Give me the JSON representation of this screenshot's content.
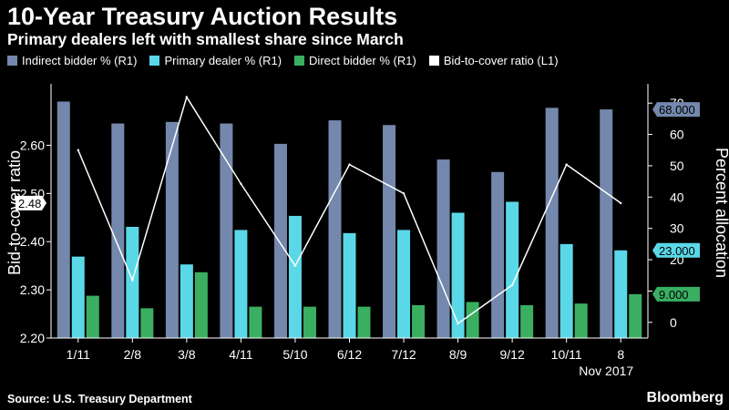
{
  "header": {
    "title": "10-Year Treasury Auction Results",
    "subtitle": "Primary dealers left with smallest share since March"
  },
  "footer": {
    "source": "Source: U.S. Treasury Department",
    "brand": "Bloomberg"
  },
  "colors": {
    "indirect": "#7388ac",
    "dealer": "#5ad8e8",
    "direct": "#3aaf62",
    "ratio": "#ffffff",
    "background": "#000000",
    "axis": "#ffffff"
  },
  "chart_data": {
    "type": "bar",
    "title": "10-Year Treasury Auction Results",
    "subtitle": "Primary dealers left with smallest share since March",
    "categories": [
      "1/11",
      "2/8",
      "3/8",
      "4/11",
      "5/10",
      "6/12",
      "7/12",
      "8/9",
      "9/12",
      "10/11",
      "8"
    ],
    "category_note": "Nov 2017",
    "series": [
      {
        "name": "Indirect bidder % (R1)",
        "axis": "right",
        "kind": "bar",
        "values": [
          70.5,
          63.5,
          64.0,
          63.5,
          57.0,
          64.5,
          63.0,
          52.0,
          48.0,
          68.5,
          68.0
        ]
      },
      {
        "name": "Primary dealer % (R1)",
        "axis": "right",
        "kind": "bar",
        "values": [
          21.0,
          30.5,
          18.5,
          29.5,
          34.0,
          28.5,
          29.5,
          35.0,
          38.5,
          25.0,
          23.0
        ]
      },
      {
        "name": "Direct bidder % (R1)",
        "axis": "right",
        "kind": "bar",
        "values": [
          8.5,
          4.5,
          16.0,
          5.0,
          5.0,
          5.0,
          5.5,
          6.5,
          5.5,
          6.0,
          9.0
        ]
      },
      {
        "name": "Bid-to-cover ratio (L1)",
        "axis": "left",
        "kind": "line",
        "values": [
          2.59,
          2.32,
          2.7,
          2.52,
          2.35,
          2.56,
          2.5,
          2.23,
          2.31,
          2.56,
          2.48
        ]
      }
    ],
    "left_axis": {
      "label": "Bid-to-cover ratio",
      "ticks": [
        2.2,
        2.3,
        2.4,
        2.5,
        2.6
      ],
      "tick_labels": [
        "2.20",
        "2.30",
        "2.40",
        "2.50",
        "2.60"
      ],
      "range": [
        2.2,
        2.72
      ]
    },
    "right_axis": {
      "label": "Percent allocation",
      "ticks": [
        0,
        10,
        20,
        30,
        40,
        50,
        60,
        70
      ],
      "tick_labels": [
        "0",
        "10",
        "20",
        "30",
        "40",
        "50",
        "60",
        "70"
      ],
      "range": [
        -5,
        75
      ]
    },
    "callouts": [
      {
        "series": "Bid-to-cover ratio (L1)",
        "axis": "left",
        "value": 2.48,
        "label": "2.48"
      },
      {
        "series": "Indirect bidder % (R1)",
        "axis": "right",
        "value": 68.0,
        "label": "68.000"
      },
      {
        "series": "Primary dealer % (R1)",
        "axis": "right",
        "value": 23.0,
        "label": "23.000"
      },
      {
        "series": "Direct bidder % (R1)",
        "axis": "right",
        "value": 9.0,
        "label": "9.000"
      }
    ],
    "legend_position": "top-left"
  }
}
